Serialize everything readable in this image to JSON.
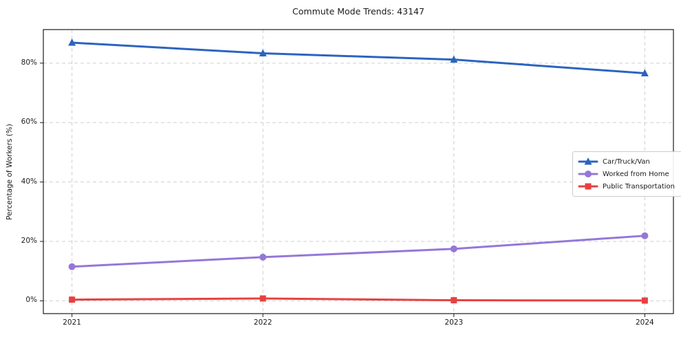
{
  "chart_data": {
    "type": "line",
    "title": "Commute Mode Trends: 43147",
    "xlabel": "",
    "ylabel": "Percentage of Workers (%)",
    "categories": [
      "2021",
      "2022",
      "2023",
      "2024"
    ],
    "series": [
      {
        "name": "Car/Truck/Van",
        "values": [
          86.9,
          83.3,
          81.2,
          76.6
        ],
        "color": "#2b64bf",
        "marker": "triangle"
      },
      {
        "name": "Worked from Home",
        "values": [
          11.5,
          14.7,
          17.5,
          21.9
        ],
        "color": "#9577d8",
        "marker": "circle"
      },
      {
        "name": "Public Transportation",
        "values": [
          0.4,
          0.8,
          0.2,
          0.1
        ],
        "color": "#e84040",
        "marker": "square"
      }
    ],
    "y_tick_values": [
      0,
      20,
      40,
      60,
      80
    ],
    "y_tick_labels": [
      "0%",
      "20%",
      "40%",
      "60%",
      "80%"
    ],
    "ylim": [
      -4.3,
      91.3
    ],
    "grid": true,
    "grid_style": "dashed",
    "legend_position": "center-right",
    "spine_color": "#1a1a1a",
    "grid_color": "#cfcfcf"
  }
}
